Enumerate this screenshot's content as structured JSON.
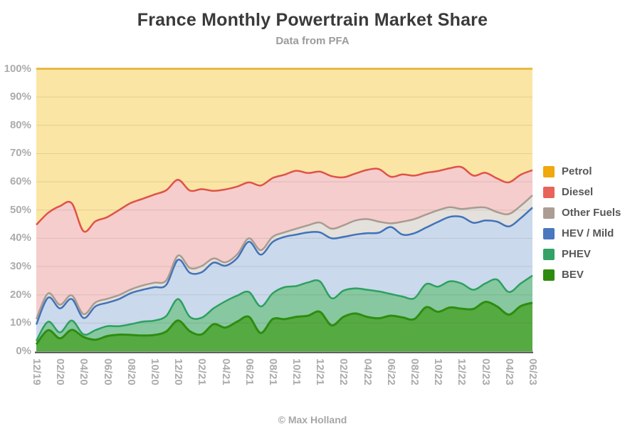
{
  "header": {
    "title": "France Monthly Powertrain Market Share",
    "subtitle": "Data from PFA"
  },
  "footer": {
    "credit": "© Max Holland"
  },
  "chart_data": {
    "type": "area",
    "stacked": true,
    "title": "France Monthly Powertrain Market Share",
    "subtitle": "Data from PFA",
    "ylim": [
      0,
      100
    ],
    "grid": true,
    "legend_position": "right",
    "n_points": 43,
    "x_range": [
      "12/19",
      "06/23"
    ],
    "x_tick_labels": [
      "12/19",
      "02/20",
      "04/20",
      "06/20",
      "08/20",
      "10/20",
      "12/20",
      "02/21",
      "04/21",
      "06/21",
      "08/21",
      "10/21",
      "12/21",
      "02/22",
      "04/22",
      "06/22",
      "08/22",
      "10/22",
      "12/22",
      "02/23",
      "04/23",
      "06/23"
    ],
    "y_ticks": [
      "100%",
      "90%",
      "80%",
      "70%",
      "60%",
      "50%",
      "40%",
      "30%",
      "20%",
      "10%",
      "0%"
    ],
    "series": [
      {
        "name": "Petrol",
        "color": "#F0A80C",
        "line_color": "#E7BA45",
        "fill_color": "#FAE5A4",
        "values": [
          55.2,
          51.0,
          48.6,
          47.6,
          57.5,
          54.0,
          52.5,
          50.0,
          47.5,
          46.0,
          44.5,
          43.0,
          39.3,
          43.1,
          42.6,
          43.2,
          42.7,
          41.7,
          40.2,
          41.3,
          38.7,
          37.5,
          36.1,
          36.9,
          36.4,
          38.0,
          38.4,
          37.1,
          35.8,
          35.5,
          38.2,
          37.4,
          37.8,
          36.8,
          36.2,
          35.2,
          34.8,
          37.8,
          36.8,
          38.8,
          40.2,
          37.5,
          35.9
        ]
      },
      {
        "name": "Diesel",
        "color": "#E8635A",
        "line_color": "#DF5348",
        "fill_color": "#F5CDCC",
        "values": [
          33.4,
          28.5,
          34.9,
          32.6,
          29.3,
          28.7,
          28.9,
          30.1,
          30.6,
          30.7,
          31.2,
          31.9,
          26.8,
          27.4,
          27.2,
          23.9,
          25.8,
          24.0,
          19.8,
          22.9,
          20.8,
          20.4,
          20.5,
          18.5,
          18.0,
          18.6,
          17.0,
          16.6,
          17.4,
          18.6,
          16.5,
          16.7,
          15.4,
          14.8,
          13.9,
          13.8,
          14.8,
          11.4,
          12.3,
          11.9,
          11.2,
          11.0,
          8.9
        ]
      },
      {
        "name": "Other Fuels",
        "color": "#AC9D94",
        "line_color": "#A89B92",
        "fill_color": "#E4E0DB",
        "values": [
          1.9,
          1.5,
          1.3,
          1.3,
          1.4,
          1.4,
          1.4,
          1.4,
          1.3,
          1.5,
          1.6,
          1.6,
          1.5,
          1.7,
          2.2,
          1.5,
          1.2,
          1.3,
          1.2,
          1.6,
          1.8,
          1.6,
          2.1,
          2.5,
          3.5,
          3.4,
          4.1,
          5.0,
          5.0,
          3.9,
          1.3,
          4.6,
          5.0,
          4.6,
          4.1,
          3.4,
          2.8,
          5.3,
          4.6,
          3.4,
          4.4,
          4.4,
          4.3
        ]
      },
      {
        "name": "HEV / Mild",
        "color": "#4A77BE",
        "line_color": "#4273B8",
        "fill_color": "#CBD9EC",
        "values": [
          5.8,
          8.5,
          8.5,
          7.6,
          5.8,
          8.4,
          8.3,
          9.6,
          11.0,
          11.3,
          11.8,
          11.0,
          13.9,
          15.6,
          16.1,
          16.2,
          12.6,
          13.3,
          17.8,
          18.3,
          18.2,
          17.8,
          18.2,
          17.7,
          17.3,
          21.2,
          19.0,
          19.0,
          20.0,
          20.8,
          23.7,
          21.9,
          23.0,
          20.0,
          22.9,
          22.8,
          23.6,
          23.7,
          22.3,
          20.5,
          23.2,
          23.1,
          24.1
        ]
      },
      {
        "name": "PHEV",
        "color": "#34A266",
        "line_color": "#2EA061",
        "fill_color": "#87C8A0",
        "values": [
          1.2,
          3.0,
          2.1,
          3.3,
          0.9,
          3.4,
          3.5,
          3.0,
          3.8,
          4.9,
          5.1,
          5.5,
          7.6,
          5.1,
          5.9,
          5.6,
          9.3,
          9.2,
          8.8,
          9.4,
          9.1,
          11.3,
          10.9,
          11.8,
          10.8,
          9.6,
          9.3,
          8.9,
          9.6,
          9.5,
          7.7,
          7.4,
          7.4,
          8.2,
          8.9,
          9.3,
          8.9,
          6.8,
          6.5,
          9.5,
          8.0,
          8.0,
          9.6
        ]
      },
      {
        "name": "BEV",
        "color": "#2F8B0B",
        "line_color": "#2E8D10",
        "fill_color": "#56AA42",
        "values": [
          2.5,
          7.5,
          4.6,
          7.6,
          5.1,
          4.1,
          5.4,
          5.9,
          5.8,
          5.6,
          5.8,
          7.0,
          10.9,
          7.1,
          6.0,
          9.6,
          8.4,
          10.5,
          12.2,
          6.5,
          11.4,
          11.4,
          12.2,
          12.6,
          14.0,
          9.2,
          12.2,
          13.4,
          12.2,
          11.7,
          12.6,
          12.0,
          11.4,
          15.6,
          14.0,
          15.5,
          15.1,
          15.0,
          17.5,
          15.9,
          13.0,
          16.0,
          17.2
        ]
      }
    ]
  }
}
